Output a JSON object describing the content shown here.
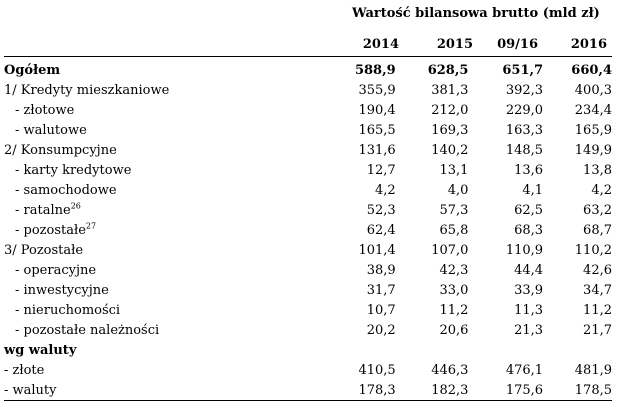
{
  "caption": "Wartość bilansowa brutto (mld zł)",
  "years": [
    "2014",
    "2015",
    "09/16",
    "2016"
  ],
  "rows": [
    {
      "label": "Ogółem",
      "sup": "",
      "bold": true,
      "values": [
        "588,9",
        "628,5",
        "651,7",
        "660,4"
      ]
    },
    {
      "label": "1/ Kredyty mieszkaniowe",
      "sup": "",
      "bold": false,
      "values": [
        "355,9",
        "381,3",
        "392,3",
        "400,3"
      ]
    },
    {
      "label": "- złotowe",
      "sup": "",
      "bold": false,
      "indent": true,
      "values": [
        "190,4",
        "212,0",
        "229,0",
        "234,4"
      ]
    },
    {
      "label": "- walutowe",
      "sup": "",
      "bold": false,
      "indent": true,
      "values": [
        "165,5",
        "169,3",
        "163,3",
        "165,9"
      ]
    },
    {
      "label": "2/ Konsumpcyjne",
      "sup": "",
      "bold": false,
      "values": [
        "131,6",
        "140,2",
        "148,5",
        "149,9"
      ]
    },
    {
      "label": "- karty kredytowe",
      "sup": "",
      "bold": false,
      "indent": true,
      "values": [
        "12,7",
        "13,1",
        "13,6",
        "13,8"
      ]
    },
    {
      "label": "- samochodowe",
      "sup": "",
      "bold": false,
      "indent": true,
      "values": [
        "4,2",
        "4,0",
        "4,1",
        "4,2"
      ]
    },
    {
      "label": "- ratalne",
      "sup": "26",
      "bold": false,
      "indent": true,
      "values": [
        "52,3",
        "57,3",
        "62,5",
        "63,2"
      ]
    },
    {
      "label": "- pozostałe",
      "sup": "27",
      "bold": false,
      "indent": true,
      "values": [
        "62,4",
        "65,8",
        "68,3",
        "68,7"
      ]
    },
    {
      "label": "3/ Pozostałe",
      "sup": "",
      "bold": false,
      "values": [
        "101,4",
        "107,0",
        "110,9",
        "110,2"
      ]
    },
    {
      "label": "- operacyjne",
      "sup": "",
      "bold": false,
      "indent": true,
      "values": [
        "38,9",
        "42,3",
        "44,4",
        "42,6"
      ]
    },
    {
      "label": "- inwestycyjne",
      "sup": "",
      "bold": false,
      "indent": true,
      "values": [
        "31,7",
        "33,0",
        "33,9",
        "34,7"
      ]
    },
    {
      "label": "- nieruchomości",
      "sup": "",
      "bold": false,
      "indent": true,
      "values": [
        "10,7",
        "11,2",
        "11,3",
        "11,2"
      ]
    },
    {
      "label": "- pozostałe należności",
      "sup": "",
      "bold": false,
      "indent": true,
      "values": [
        "20,2",
        "20,6",
        "21,3",
        "21,7"
      ]
    },
    {
      "label": "wg waluty",
      "sup": "",
      "bold": true,
      "values": [
        "",
        "",
        "",
        ""
      ]
    },
    {
      "label": "- złote",
      "sup": "",
      "bold": false,
      "values": [
        "410,5",
        "446,3",
        "476,1",
        "481,9"
      ]
    },
    {
      "label": "- waluty",
      "sup": "",
      "bold": false,
      "values": [
        "178,3",
        "182,3",
        "175,6",
        "178,5"
      ]
    }
  ]
}
